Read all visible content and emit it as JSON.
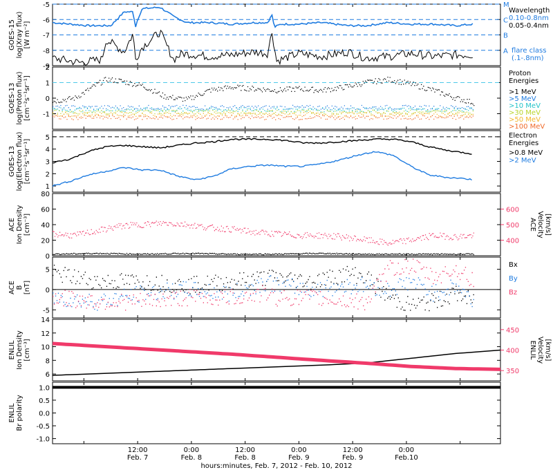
{
  "colors": {
    "black": "#000000",
    "blue": "#1e7be0",
    "pink": "#f03a6a",
    "cyan_dash": "#4cc8e8",
    "p5": "#1e7be0",
    "p10": "#22c3c8",
    "p30": "#b9d42a",
    "p50": "#f2b52a",
    "p100": "#f06a2a"
  },
  "footer": {
    "title": "hours:minutes, Feb.  7, 2012 - Feb. 10, 2012",
    "ticks": [
      {
        "t": "12:00",
        "d": "Feb. 7"
      },
      {
        "t": "0:00",
        "d": "Feb. 8"
      },
      {
        "t": "12:00",
        "d": "Feb. 8"
      },
      {
        "t": "0:00",
        "d": "Feb. 9"
      },
      {
        "t": "12:00",
        "d": "Feb. 9"
      },
      {
        "t": "0:00",
        "d": "Feb.10"
      }
    ]
  },
  "chart_data": [
    {
      "type": "line",
      "ylabel": [
        "GOES-15",
        "log(Xray flux)",
        "[W m⁻²]"
      ],
      "ylim": [
        -9,
        -5
      ],
      "yticks": [
        -9,
        -8,
        -7,
        -6,
        -5
      ],
      "ytick_labels": [
        "-9",
        "-8",
        "-7",
        "-6",
        "-5"
      ],
      "flare_classes": [
        {
          "label": "M",
          "y": -5
        },
        {
          "label": "C",
          "y": -6
        },
        {
          "label": "B",
          "y": -7
        },
        {
          "label": "A",
          "y": -8
        }
      ],
      "legend": [
        "Wavelength",
        "0.10-0.8nm",
        "0.05-0.4nm",
        "flare class",
        "(.1-.8nm)"
      ],
      "series": [
        {
          "name": "0.10-0.8nm",
          "color": "blue",
          "x": [
            0,
            8,
            13,
            16,
            18,
            18.5,
            19,
            20,
            24,
            27,
            30,
            35,
            40,
            45,
            48,
            49,
            49.5,
            51,
            55,
            60,
            66,
            70,
            75,
            80,
            85,
            90,
            94
          ],
          "y": [
            -6.2,
            -6.4,
            -6.4,
            -5.5,
            -5.5,
            -6.5,
            -6.0,
            -5.3,
            -5.2,
            -5.8,
            -6.2,
            -6.2,
            -6.3,
            -6.2,
            -6.2,
            -5.7,
            -6.5,
            -6.3,
            -6.3,
            -6.2,
            -6.4,
            -6.4,
            -6.2,
            -6.3,
            -6.3,
            -6.4,
            -6.3
          ]
        },
        {
          "name": "0.05-0.4nm",
          "color": "black",
          "x": [
            0,
            6,
            11,
            12,
            16,
            18,
            18.5,
            20,
            24,
            27,
            29,
            35,
            40,
            45,
            48,
            49,
            50,
            55,
            60,
            66,
            70,
            75,
            80,
            85,
            90,
            94
          ],
          "y": [
            -8.5,
            -8.8,
            -8.6,
            -7.3,
            -8.1,
            -6.9,
            -8.6,
            -7.8,
            -6.8,
            -8.6,
            -8.2,
            -8.4,
            -8.3,
            -8.1,
            -8.2,
            -6.8,
            -8.7,
            -8.2,
            -8.4,
            -8.1,
            -8.5,
            -8.4,
            -8.2,
            -8.4,
            -8.3,
            -8.3
          ]
        }
      ]
    },
    {
      "type": "scatter",
      "ylabel": [
        "GOES-13",
        "log(Proton flux)",
        "[cm⁻²s⁻¹sr⁻¹]"
      ],
      "ylim": [
        -2,
        2
      ],
      "yticks": [
        -1,
        0,
        1,
        2
      ],
      "ytick_labels": [
        "-1",
        "0",
        "1",
        "2"
      ],
      "threshold": 1,
      "legend_title": [
        "Proton",
        "Energies"
      ],
      "series": [
        {
          "name": ">1 MeV",
          "color": "black",
          "x": [
            0,
            5,
            10,
            12,
            15,
            20,
            25,
            30,
            35,
            40,
            45,
            50,
            55,
            60,
            65,
            70,
            75,
            80,
            85,
            90,
            94
          ],
          "y": [
            -0.2,
            0.0,
            0.9,
            1.2,
            1.1,
            0.8,
            0.1,
            -0.1,
            0.5,
            0.7,
            0.6,
            0.5,
            0.6,
            0.5,
            0.7,
            1.0,
            1.2,
            0.9,
            0.5,
            0.0,
            -0.3
          ]
        },
        {
          "name": ">5 MeV",
          "color": "p5",
          "level": -0.6
        },
        {
          "name": ">10 MeV",
          "color": "p10",
          "level": -0.75
        },
        {
          "name": ">30 MeV",
          "color": "p30",
          "level": -0.9
        },
        {
          "name": ">50 MeV",
          "color": "p50",
          "level": -1.05
        },
        {
          "name": ">100 MeV",
          "color": "p100",
          "level": -1.25
        }
      ]
    },
    {
      "type": "line",
      "ylabel": [
        "GOES-13",
        "log(Electron flux)",
        "[cm⁻²s⁻¹sr⁻¹]"
      ],
      "ylim": [
        0.5,
        5.5
      ],
      "yticks": [
        1,
        2,
        3,
        4,
        5
      ],
      "ytick_labels": [
        "1",
        "2",
        "3",
        "4",
        "5"
      ],
      "threshold": 5,
      "legend_title": [
        "Electron",
        "Energies"
      ],
      "series": [
        {
          "name": ">0.8 MeV",
          "color": "black",
          "x": [
            0,
            4,
            8,
            12,
            16,
            20,
            24,
            28,
            32,
            36,
            40,
            44,
            48,
            52,
            56,
            60,
            64,
            68,
            72,
            76,
            80,
            84,
            88,
            92,
            94
          ],
          "y": [
            2.9,
            3.2,
            3.8,
            4.2,
            4.3,
            4.2,
            4.1,
            4.3,
            4.5,
            4.6,
            4.8,
            4.8,
            4.8,
            4.7,
            4.5,
            4.5,
            4.6,
            4.7,
            4.8,
            4.8,
            4.6,
            4.2,
            3.9,
            3.7,
            3.6
          ]
        },
        {
          "name": ">2 MeV",
          "color": "blue",
          "x": [
            0,
            4,
            8,
            12,
            16,
            20,
            24,
            28,
            32,
            36,
            40,
            44,
            48,
            52,
            56,
            60,
            64,
            68,
            72,
            76,
            80,
            84,
            88,
            92,
            94
          ],
          "y": [
            1.0,
            1.4,
            1.9,
            2.2,
            2.5,
            2.3,
            2.3,
            1.8,
            1.5,
            1.8,
            2.4,
            2.6,
            2.7,
            2.6,
            2.6,
            2.8,
            3.1,
            3.5,
            3.8,
            3.5,
            2.6,
            1.9,
            1.7,
            1.6,
            1.5
          ]
        }
      ]
    },
    {
      "type": "scatter",
      "ylabel": [
        "ACE",
        "Ion Density",
        "[cm⁻³]"
      ],
      "ylabel_right": [
        "ACE",
        "Velocity",
        "[km/s]"
      ],
      "ylim": [
        0,
        80
      ],
      "yticks": [
        0,
        20,
        40,
        60,
        80
      ],
      "ytick_labels": [
        "0",
        "20",
        "40",
        "60",
        "80"
      ],
      "ylim_right": [
        300,
        700
      ],
      "yticks_right": [
        400,
        500,
        600
      ],
      "ytick_labels_right": [
        "400",
        "500",
        "600"
      ],
      "series": [
        {
          "name": "Ion Density",
          "color": "black",
          "x": [
            0,
            10,
            20,
            30,
            40,
            50,
            60,
            70,
            80,
            90,
            94
          ],
          "y": [
            2,
            3,
            2,
            3,
            2,
            2,
            3,
            2,
            2,
            2,
            2
          ]
        },
        {
          "name": "Velocity",
          "color": "pink",
          "axis": "right",
          "x": [
            0,
            5,
            10,
            15,
            20,
            25,
            30,
            35,
            40,
            45,
            50,
            55,
            60,
            65,
            70,
            75,
            80,
            85,
            90,
            94
          ],
          "y": [
            440,
            430,
            460,
            490,
            500,
            510,
            500,
            480,
            470,
            450,
            440,
            430,
            430,
            420,
            400,
            380,
            400,
            430,
            420,
            430
          ]
        }
      ]
    },
    {
      "type": "scatter",
      "ylabel": [
        "ACE",
        "B",
        "[nT]"
      ],
      "ylim": [
        -7,
        8
      ],
      "yticks": [
        -5,
        0,
        5
      ],
      "ytick_labels": [
        "-5",
        "0",
        "5"
      ],
      "legend": [
        "Bx",
        "By",
        "Bz"
      ],
      "series": [
        {
          "name": "Bx",
          "color": "black",
          "x": [
            0,
            10,
            20,
            30,
            40,
            48,
            50,
            58,
            66,
            70,
            75,
            80,
            85,
            90,
            94
          ],
          "y": [
            4,
            2,
            2,
            1,
            2,
            3,
            3,
            2,
            4,
            3,
            -2,
            -4,
            -3,
            -1,
            -3
          ]
        },
        {
          "name": "By",
          "color": "blue",
          "x": [
            0,
            10,
            20,
            30,
            40,
            48,
            50,
            58,
            66,
            70,
            75,
            80,
            85,
            90,
            94
          ],
          "y": [
            -2,
            -3,
            -1,
            0,
            -1,
            2,
            1,
            0,
            1,
            1,
            0,
            2,
            -1,
            1,
            -3
          ]
        },
        {
          "name": "Bz",
          "color": "pink",
          "x": [
            0,
            10,
            20,
            30,
            40,
            48,
            50,
            58,
            66,
            70,
            75,
            80,
            85,
            90,
            94
          ],
          "y": [
            -2,
            -3,
            -3,
            -2,
            -2,
            -1,
            -2,
            -2,
            -3,
            -3,
            5,
            6,
            3,
            5,
            2
          ]
        }
      ]
    },
    {
      "type": "line",
      "ylabel": [
        "ENLIL",
        "Ion Density",
        "[cm⁻³]"
      ],
      "ylabel_right": [
        "ENLIL",
        "Velocity",
        "[km/s]"
      ],
      "ylim": [
        5,
        14
      ],
      "yticks": [
        6,
        8,
        10,
        12,
        14
      ],
      "ytick_labels": [
        "6",
        "8",
        "10",
        "12",
        "14"
      ],
      "ylim_right": [
        325,
        475
      ],
      "yticks_right": [
        350,
        400,
        450
      ],
      "ytick_labels_right": [
        "350",
        "400",
        "450"
      ],
      "series": [
        {
          "name": "Ion Density",
          "color": "black",
          "x": [
            0,
            20,
            40,
            60,
            70,
            80,
            90,
            100
          ],
          "y": [
            5.8,
            6.3,
            6.8,
            7.3,
            7.6,
            8.3,
            9.0,
            9.5
          ]
        },
        {
          "name": "Velocity",
          "color": "pink",
          "axis": "right",
          "x": [
            0,
            20,
            40,
            60,
            70,
            80,
            90,
            100
          ],
          "y": [
            416,
            403,
            390,
            375,
            368,
            360,
            355,
            353
          ]
        }
      ]
    },
    {
      "type": "line",
      "ylabel": [
        "ENLIL",
        "Br polarity"
      ],
      "ylim": [
        -1.2,
        1.2
      ],
      "yticks": [
        -1.0,
        -0.5,
        0.0,
        0.5,
        1.0
      ],
      "ytick_labels": [
        "-1.0",
        "-0.5",
        "0.0",
        "0.5",
        "1.0"
      ],
      "series": [
        {
          "name": "Br polarity",
          "color": "black",
          "x": [
            0,
            100
          ],
          "y": [
            1.0,
            1.0
          ]
        }
      ]
    }
  ]
}
